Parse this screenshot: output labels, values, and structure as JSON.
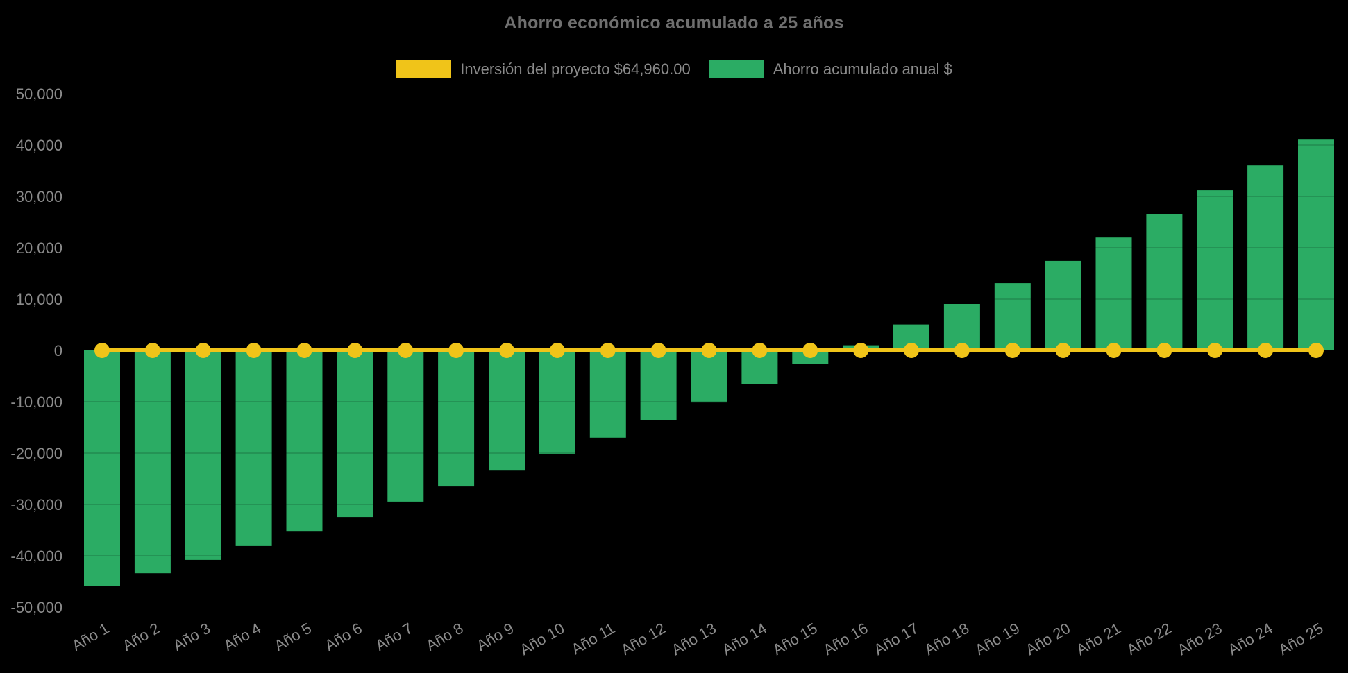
{
  "colors": {
    "background": "#000000",
    "bar_green": "#2BAC64",
    "line_yellow": "#F0C419",
    "title_gray": "#6F6F6F",
    "label_gray": "#8B8B8B",
    "grid_overlay": "rgba(0,0,0,0.14)"
  },
  "chart_data": {
    "type": "bar",
    "title": "Ahorro económico acumulado a 25 años",
    "xlabel": "",
    "ylabel": "",
    "ylim": [
      -50000,
      50000
    ],
    "ytick_step": 10000,
    "ytick_labels": [
      "50,000",
      "40,000",
      "30,000",
      "20,000",
      "10,000",
      "0",
      "-10,000",
      "-20,000",
      "-30,000",
      "-40,000",
      "-50,000"
    ],
    "legend_position": "top",
    "grid": "faint",
    "categories": [
      "Año 1",
      "Año 2",
      "Año 3",
      "Año 4",
      "Año 5",
      "Año 6",
      "Año 7",
      "Año 8",
      "Año 9",
      "Año 10",
      "Año 11",
      "Año 12",
      "Año 13",
      "Año 14",
      "Año 15",
      "Año 16",
      "Año 17",
      "Año 18",
      "Año 19",
      "Año 20",
      "Año 21",
      "Año 22",
      "Año 23",
      "Año 24",
      "Año 25"
    ],
    "series": [
      {
        "name": "Inversión del proyecto $64,960.00",
        "type": "line",
        "color": "#F0C419",
        "values": [
          0,
          0,
          0,
          0,
          0,
          0,
          0,
          0,
          0,
          0,
          0,
          0,
          0,
          0,
          0,
          0,
          0,
          0,
          0,
          0,
          0,
          0,
          0,
          0,
          0
        ]
      },
      {
        "name": "Ahorro acumulado anual $",
        "type": "bar",
        "color": "#2BAC64",
        "values": [
          -45900,
          -43400,
          -40800,
          -38100,
          -35300,
          -32450,
          -29450,
          -26500,
          -23400,
          -20150,
          -17000,
          -13650,
          -10150,
          -6500,
          -2600,
          1000,
          5050,
          9050,
          13100,
          17450,
          22000,
          26600,
          31200,
          36050,
          41050
        ]
      }
    ]
  }
}
